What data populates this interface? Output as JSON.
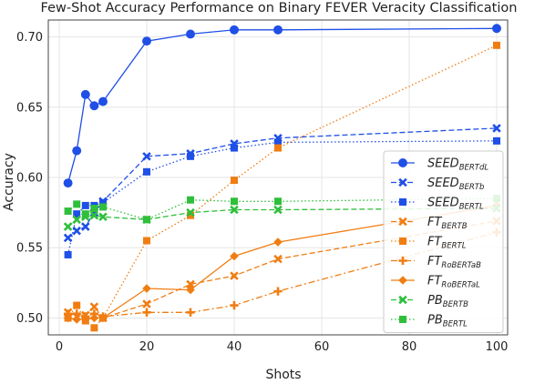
{
  "chart_data": {
    "type": "line",
    "title": "Few-Shot Accuracy Performance on Binary FEVER Veracity Classification",
    "xlabel": "Shots",
    "ylabel": "Accuracy",
    "xlim": [
      -2.5,
      102.5
    ],
    "ylim": [
      0.488,
      0.712
    ],
    "xticks": [
      0,
      20,
      40,
      60,
      80,
      100
    ],
    "xtick_labels": [
      "0",
      "20",
      "40",
      "60",
      "80",
      "100"
    ],
    "yticks": [
      0.5,
      0.55,
      0.6,
      0.65,
      0.7
    ],
    "ytick_labels": [
      "0.50",
      "0.55",
      "0.60",
      "0.65",
      "0.70"
    ],
    "grid": true,
    "legend_position": "right",
    "series": [
      {
        "name": "SEED",
        "name_sub": "BERTdL",
        "color": "#1f4fe6",
        "marker": "circle",
        "dash": "solid",
        "x": [
          2,
          4,
          6,
          8,
          10,
          20,
          30,
          40,
          50,
          100
        ],
        "y": [
          0.596,
          0.619,
          0.659,
          0.651,
          0.654,
          0.697,
          0.702,
          0.705,
          0.705,
          0.706
        ]
      },
      {
        "name": "SEED",
        "name_sub": "BERTb",
        "color": "#1f4fe6",
        "marker": "x",
        "dash": "dashed",
        "x": [
          2,
          4,
          6,
          8,
          10,
          20,
          30,
          40,
          50,
          100
        ],
        "y": [
          0.557,
          0.562,
          0.565,
          0.575,
          0.583,
          0.615,
          0.617,
          0.624,
          0.628,
          0.635
        ]
      },
      {
        "name": "SEED",
        "name_sub": "BERTL",
        "color": "#1f4fe6",
        "marker": "square",
        "dash": "dotted",
        "x": [
          2,
          4,
          6,
          8,
          10,
          20,
          30,
          40,
          50,
          100
        ],
        "y": [
          0.545,
          0.574,
          0.58,
          0.58,
          0.582,
          0.604,
          0.615,
          0.621,
          0.625,
          0.626
        ]
      },
      {
        "name": "FT",
        "name_sub": "BERTB",
        "color": "#f07d12",
        "marker": "x",
        "dash": "dashed",
        "x": [
          2,
          4,
          6,
          8,
          10,
          20,
          30,
          40,
          50,
          100
        ],
        "y": [
          0.504,
          0.501,
          0.502,
          0.508,
          0.5,
          0.51,
          0.524,
          0.53,
          0.542,
          0.569
        ]
      },
      {
        "name": "FT",
        "name_sub": "BERTL",
        "color": "#f07d12",
        "marker": "square",
        "dash": "dotted",
        "x": [
          2,
          4,
          6,
          8,
          10,
          20,
          30,
          40,
          50,
          100
        ],
        "y": [
          0.5,
          0.509,
          0.498,
          0.493,
          0.5,
          0.555,
          0.573,
          0.598,
          0.621,
          0.694
        ]
      },
      {
        "name": "FT",
        "name_sub": "RoBERTaB",
        "color": "#f07d12",
        "marker": "plus",
        "dash": "dashdot",
        "x": [
          2,
          4,
          6,
          8,
          10,
          20,
          30,
          40,
          50,
          100
        ],
        "y": [
          0.503,
          0.503,
          0.501,
          0.503,
          0.501,
          0.504,
          0.504,
          0.509,
          0.519,
          0.561
        ]
      },
      {
        "name": "FT",
        "name_sub": "RoBERTaL",
        "color": "#f07d12",
        "marker": "diamond",
        "dash": "solid",
        "x": [
          2,
          4,
          6,
          8,
          10,
          20,
          30,
          40,
          50,
          100
        ],
        "y": [
          0.5,
          0.499,
          0.499,
          0.5,
          0.5,
          0.521,
          0.52,
          0.544,
          0.554,
          0.58
        ]
      },
      {
        "name": "PB",
        "name_sub": "BERTB",
        "color": "#2fbf3b",
        "marker": "x",
        "dash": "dashed",
        "x": [
          2,
          4,
          6,
          8,
          10,
          20,
          30,
          40,
          50,
          100
        ],
        "y": [
          0.565,
          0.57,
          0.572,
          0.573,
          0.572,
          0.57,
          0.575,
          0.577,
          0.577,
          0.578
        ]
      },
      {
        "name": "PB",
        "name_sub": "BERTL",
        "color": "#2fbf3b",
        "marker": "square",
        "dash": "dotted",
        "x": [
          2,
          4,
          6,
          8,
          10,
          20,
          30,
          40,
          50,
          100
        ],
        "y": [
          0.576,
          0.581,
          0.574,
          0.578,
          0.579,
          0.57,
          0.584,
          0.583,
          0.583,
          0.585
        ]
      }
    ]
  }
}
